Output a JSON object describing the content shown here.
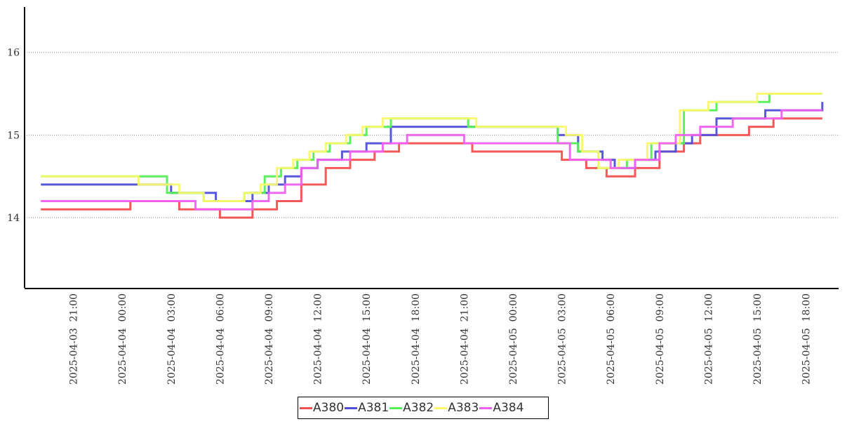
{
  "chart_data": {
    "type": "line",
    "title": "",
    "xlabel": "",
    "ylabel": "",
    "x_ticks": [
      "2025-04-03 21:00",
      "2025-04-04 00:00",
      "2025-04-04 03:00",
      "2025-04-04 06:00",
      "2025-04-04 09:00",
      "2025-04-04 12:00",
      "2025-04-04 15:00",
      "2025-04-04 18:00",
      "2025-04-04 21:00",
      "2025-04-05 00:00",
      "2025-04-05 03:00",
      "2025-04-05 06:00",
      "2025-04-05 09:00",
      "2025-04-05 12:00",
      "2025-04-05 15:00",
      "2025-04-05 18:00"
    ],
    "y_ticks": [
      "14",
      "15",
      "16"
    ],
    "ylim": [
      13.15,
      16.55
    ],
    "xlim": [
      "2025-04-03 18:00",
      "2025-04-05 20:00"
    ],
    "grid": "horizontal dotted",
    "legend_position": "bottom-center",
    "series": [
      {
        "name": "A380",
        "color": "#f25050",
        "x": [
          "2025-04-03 19:00",
          "2025-04-04 00:30",
          "2025-04-04 03:30",
          "2025-04-04 06:00",
          "2025-04-04 08:00",
          "2025-04-04 09:30",
          "2025-04-04 11:00",
          "2025-04-04 12:30",
          "2025-04-04 14:00",
          "2025-04-04 15:30",
          "2025-04-04 17:00",
          "2025-04-04 21:30",
          "2025-04-05 03:00",
          "2025-04-05 04:30",
          "2025-04-05 05:45",
          "2025-04-05 07:30",
          "2025-04-05 09:00",
          "2025-04-05 10:30",
          "2025-04-05 11:30",
          "2025-04-05 14:30",
          "2025-04-05 16:00",
          "2025-04-05 19:00"
        ],
        "y": [
          14.1,
          14.2,
          14.1,
          14.0,
          14.1,
          14.2,
          14.4,
          14.6,
          14.7,
          14.8,
          14.9,
          14.8,
          14.7,
          14.6,
          14.5,
          14.6,
          14.8,
          14.9,
          15.0,
          15.1,
          15.2,
          15.2
        ]
      },
      {
        "name": "A381",
        "color": "#4f4fd8",
        "x": [
          "2025-04-03 19:00",
          "2025-04-04 03:00",
          "2025-04-04 05:45",
          "2025-04-04 08:00",
          "2025-04-04 09:00",
          "2025-04-04 10:00",
          "2025-04-04 11:00",
          "2025-04-04 12:00",
          "2025-04-04 13:30",
          "2025-04-04 15:00",
          "2025-04-04 16:30",
          "2025-04-05 02:45",
          "2025-04-05 04:00",
          "2025-04-05 05:30",
          "2025-04-05 06:15",
          "2025-04-05 07:30",
          "2025-04-05 08:45",
          "2025-04-05 10:00",
          "2025-04-05 11:00",
          "2025-04-05 12:30",
          "2025-04-05 15:30",
          "2025-04-05 19:00"
        ],
        "y": [
          14.4,
          14.3,
          14.2,
          14.3,
          14.4,
          14.5,
          14.6,
          14.7,
          14.8,
          14.9,
          15.1,
          15.0,
          14.8,
          14.7,
          14.6,
          14.7,
          14.8,
          14.9,
          15.0,
          15.2,
          15.3,
          15.4
        ]
      },
      {
        "name": "A382",
        "color": "#55ee55",
        "x": [
          "2025-04-03 19:00",
          "2025-04-04 02:45",
          "2025-04-04 05:00",
          "2025-04-04 07:30",
          "2025-04-04 08:45",
          "2025-04-04 09:45",
          "2025-04-04 10:45",
          "2025-04-04 11:45",
          "2025-04-04 12:45",
          "2025-04-04 14:00",
          "2025-04-04 15:00",
          "2025-04-04 16:30",
          "2025-04-04 21:15",
          "2025-04-05 02:45",
          "2025-04-05 04:00",
          "2025-04-05 05:15",
          "2025-04-05 07:00",
          "2025-04-05 08:30",
          "2025-04-05 10:30",
          "2025-04-05 12:30",
          "2025-04-05 15:45",
          "2025-04-05 19:00"
        ],
        "y": [
          14.5,
          14.3,
          14.2,
          14.3,
          14.5,
          14.6,
          14.7,
          14.8,
          14.9,
          15.0,
          15.1,
          15.2,
          15.1,
          14.9,
          14.8,
          14.6,
          14.7,
          14.9,
          15.3,
          15.4,
          15.5,
          15.5
        ]
      },
      {
        "name": "A383",
        "color": "#f8f86a",
        "x": [
          "2025-04-03 19:00",
          "2025-04-04 01:00",
          "2025-04-04 03:30",
          "2025-04-04 05:00",
          "2025-04-04 07:30",
          "2025-04-04 08:30",
          "2025-04-04 09:30",
          "2025-04-04 10:30",
          "2025-04-04 11:30",
          "2025-04-04 12:30",
          "2025-04-04 13:45",
          "2025-04-04 14:45",
          "2025-04-04 16:00",
          "2025-04-04 21:45",
          "2025-04-05 03:15",
          "2025-04-05 04:15",
          "2025-04-05 05:15",
          "2025-04-05 06:30",
          "2025-04-05 08:15",
          "2025-04-05 10:15",
          "2025-04-05 12:00",
          "2025-04-05 15:00",
          "2025-04-05 19:00"
        ],
        "y": [
          14.5,
          14.4,
          14.3,
          14.2,
          14.3,
          14.4,
          14.6,
          14.7,
          14.8,
          14.9,
          15.0,
          15.1,
          15.2,
          15.1,
          15.0,
          14.8,
          14.6,
          14.7,
          14.9,
          15.3,
          15.4,
          15.5,
          15.5
        ]
      },
      {
        "name": "A384",
        "color": "#f060f0",
        "x": [
          "2025-04-03 19:00",
          "2025-04-04 04:30",
          "2025-04-04 06:00",
          "2025-04-04 08:00",
          "2025-04-04 09:00",
          "2025-04-04 10:00",
          "2025-04-04 11:00",
          "2025-04-04 12:00",
          "2025-04-04 14:00",
          "2025-04-04 16:00",
          "2025-04-04 17:30",
          "2025-04-04 21:00",
          "2025-04-05 03:30",
          "2025-04-05 06:00",
          "2025-04-05 07:30",
          "2025-04-05 09:00",
          "2025-04-05 10:00",
          "2025-04-05 11:30",
          "2025-04-05 13:30",
          "2025-04-05 16:30",
          "2025-04-05 19:00"
        ],
        "y": [
          14.2,
          14.1,
          14.1,
          14.2,
          14.3,
          14.4,
          14.6,
          14.7,
          14.8,
          14.9,
          15.0,
          14.9,
          14.7,
          14.6,
          14.7,
          14.9,
          15.0,
          15.1,
          15.2,
          15.3,
          15.3
        ]
      }
    ]
  }
}
